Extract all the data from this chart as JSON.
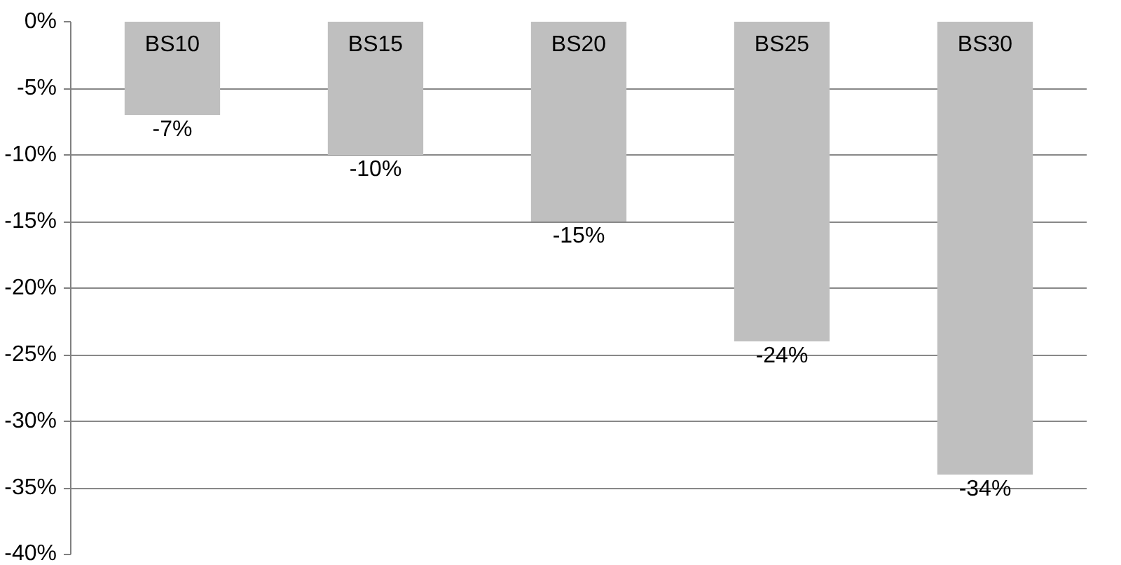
{
  "chart_data": {
    "type": "bar",
    "categories": [
      "BS10",
      "BS15",
      "BS20",
      "BS25",
      "BS30"
    ],
    "values": [
      -7,
      -10,
      -15,
      -24,
      -34
    ],
    "color": "#bfbfbf",
    "value_labels": [
      "-7%",
      "-10%",
      "-15%",
      "-24%",
      "-34%"
    ],
    "ylim": [
      -40,
      0
    ],
    "yticks": [
      {
        "value": 0,
        "label": "0%"
      },
      {
        "value": -5,
        "label": "-5%"
      },
      {
        "value": -10,
        "label": "-10%"
      },
      {
        "value": -15,
        "label": "-15%"
      },
      {
        "value": -20,
        "label": "-20%"
      },
      {
        "value": -25,
        "label": "-25%"
      },
      {
        "value": -30,
        "label": "-30%"
      },
      {
        "value": -35,
        "label": "-35%"
      },
      {
        "value": -40,
        "label": "-40%"
      }
    ],
    "grid": "y"
  }
}
